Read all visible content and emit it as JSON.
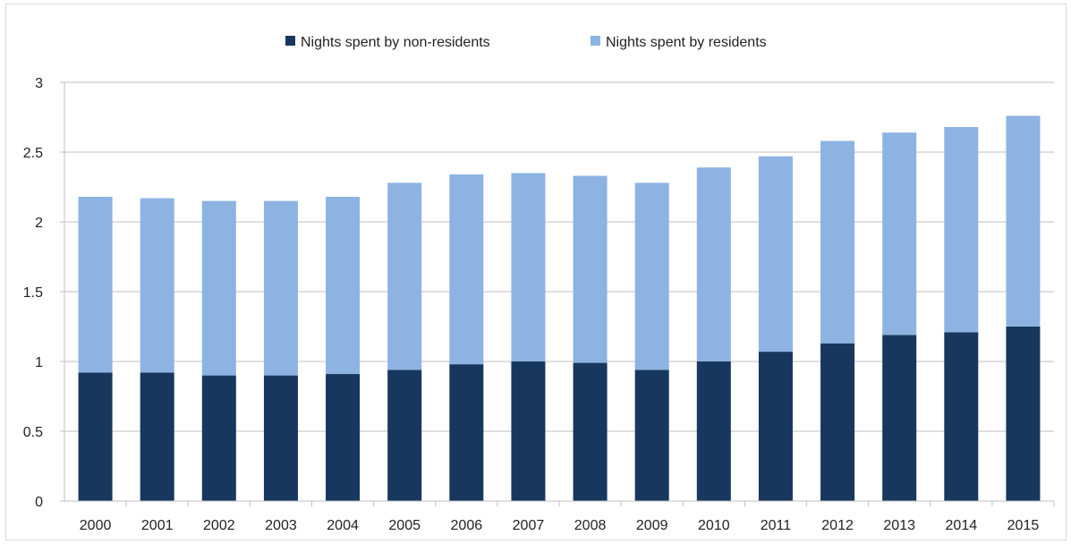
{
  "chart_data": {
    "type": "bar",
    "stacked": true,
    "categories": [
      "2000",
      "2001",
      "2002",
      "2003",
      "2004",
      "2005",
      "2006",
      "2007",
      "2008",
      "2009",
      "2010",
      "2011",
      "2012",
      "2013",
      "2014",
      "2015"
    ],
    "series": [
      {
        "name": "Nights spent by non-residents",
        "color": "#17375e",
        "values": [
          0.92,
          0.92,
          0.9,
          0.9,
          0.91,
          0.94,
          0.98,
          1.0,
          0.99,
          0.94,
          1.0,
          1.07,
          1.13,
          1.19,
          1.21,
          1.25
        ]
      },
      {
        "name": "Nights spent by residents",
        "color": "#8db3e2",
        "values": [
          1.26,
          1.25,
          1.25,
          1.25,
          1.27,
          1.34,
          1.36,
          1.35,
          1.34,
          1.34,
          1.39,
          1.4,
          1.45,
          1.45,
          1.47,
          1.51
        ]
      }
    ],
    "yticks": [
      "0",
      "0.5",
      "1",
      "1.5",
      "2",
      "2.5",
      "3"
    ],
    "ylim": [
      0,
      3
    ],
    "grid": "horizontal",
    "legend_position": "top",
    "title": "",
    "xlabel": "",
    "ylabel": ""
  }
}
